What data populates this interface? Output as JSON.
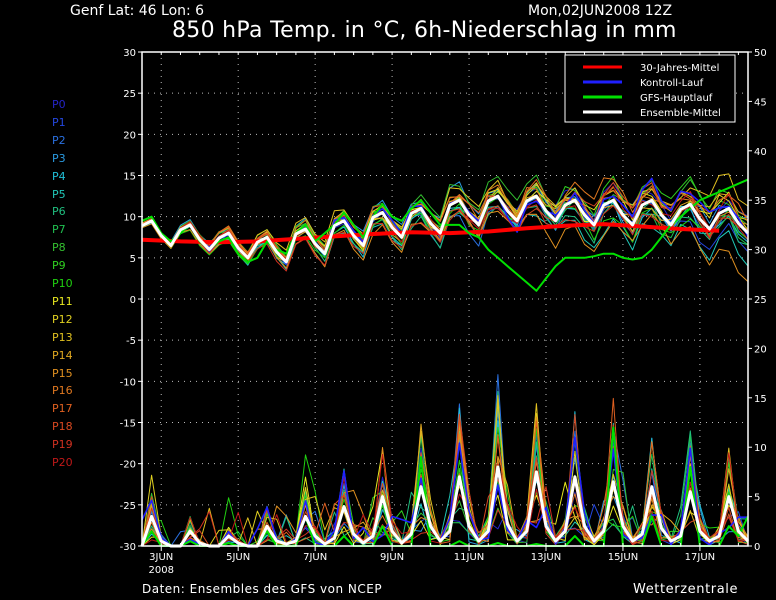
{
  "header": {
    "location": "Genf  Lat: 46 Lon: 6",
    "datetime": "Mon,02JUN2008 12Z",
    "title": "850 hPa Temp. in °C, 6h-Niederschlag in mm"
  },
  "footer": {
    "source": "Daten: Ensembles des GFS von NCEP",
    "brand": "Wetterzentrale"
  },
  "members": [
    {
      "label": "P0",
      "color": "#2424c8"
    },
    {
      "label": "P1",
      "color": "#2448e0"
    },
    {
      "label": "P2",
      "color": "#2a70e0"
    },
    {
      "label": "P3",
      "color": "#2a9ae0"
    },
    {
      "label": "P4",
      "color": "#20c0d8"
    },
    {
      "label": "P5",
      "color": "#20c8b8"
    },
    {
      "label": "P6",
      "color": "#20c080"
    },
    {
      "label": "P7",
      "color": "#20c050"
    },
    {
      "label": "P8",
      "color": "#34c030"
    },
    {
      "label": "P9",
      "color": "#30d020"
    },
    {
      "label": "P10",
      "color": "#20d010"
    },
    {
      "label": "P11",
      "color": "#e8e820"
    },
    {
      "label": "P12",
      "color": "#e0d020"
    },
    {
      "label": "P13",
      "color": "#e0c020"
    },
    {
      "label": "P14",
      "color": "#e0a820"
    },
    {
      "label": "P15",
      "color": "#e09020"
    },
    {
      "label": "P16",
      "color": "#e07820"
    },
    {
      "label": "P17",
      "color": "#e06020"
    },
    {
      "label": "P18",
      "color": "#d84820"
    },
    {
      "label": "P19",
      "color": "#d03020"
    },
    {
      "label": "P20",
      "color": "#c01818"
    }
  ],
  "chart_data": {
    "type": "line",
    "title": "850 hPa Temp. in °C, 6h-Niederschlag in mm",
    "start": "02JUN2008 12Z",
    "step_hours": 6,
    "n_steps": 64,
    "y_left": {
      "label": "850 hPa Temp. (°C)",
      "range": [
        -30,
        30
      ],
      "ticks": [
        30,
        25,
        20,
        15,
        10,
        5,
        0,
        -5,
        -10,
        -15,
        -20,
        -25,
        -30
      ]
    },
    "y_right": {
      "label": "6h-Niederschlag (mm)",
      "range": [
        0,
        50
      ],
      "ticks": [
        50,
        45,
        40,
        35,
        30,
        25,
        20,
        15,
        10,
        5,
        0
      ]
    },
    "x_ticks": [
      {
        "day": 0.5,
        "label": "3JUN",
        "sub": "2008"
      },
      {
        "day": 2.5,
        "label": "5JUN"
      },
      {
        "day": 4.5,
        "label": "7JUN"
      },
      {
        "day": 6.5,
        "label": "9JUN"
      },
      {
        "day": 8.5,
        "label": "11JUN"
      },
      {
        "day": 10.5,
        "label": "13JUN"
      },
      {
        "day": 12.5,
        "label": "15JUN"
      },
      {
        "day": 14.5,
        "label": "17JUN"
      }
    ],
    "grid": true,
    "legend": {
      "position": "top-right",
      "entries": [
        {
          "label": "30-Jahres-Mittel",
          "color": "#ff0000"
        },
        {
          "label": "Kontroll-Lauf",
          "color": "#2020ff"
        },
        {
          "label": "GFS-Hauptlauf",
          "color": "#00e000"
        },
        {
          "label": "Ensemble-Mittel",
          "color": "#ffffff"
        }
      ]
    },
    "climatology_daily_temp": [
      7.2,
      7.0,
      6.9,
      7.0,
      7.3,
      7.6,
      7.9,
      8.1,
      8.0,
      8.2,
      8.6,
      8.9,
      9.1,
      8.8,
      8.5,
      8.3
    ],
    "ensemble_mean_temp": [
      8.9,
      9.5,
      7.7,
      6.5,
      8.4,
      9,
      7.2,
      6,
      7.4,
      8,
      6.2,
      5,
      6.9,
      7.5,
      5.7,
      4.5,
      7.9,
      8.5,
      6.7,
      5.5,
      8.9,
      9.5,
      7.7,
      6.5,
      9.9,
      10.5,
      8.7,
      7.5,
      10.4,
      11,
      9.2,
      8,
      11.4,
      12,
      10.2,
      9,
      11.9,
      12.5,
      10.7,
      9.5,
      11.9,
      12.5,
      10.7,
      9.5,
      11.4,
      12,
      10.2,
      9,
      11.4,
      12,
      10.2,
      9,
      11.4,
      12,
      10.2,
      9,
      10.9,
      11.5,
      9.7,
      8.5,
      10.4,
      11,
      9.2,
      8
    ],
    "gfs_main_temp": [
      9.5,
      10,
      8,
      7,
      8,
      9,
      7,
      6,
      7,
      7.5,
      5.5,
      4.5,
      5,
      7,
      6,
      5.5,
      8,
      9,
      7,
      8,
      9,
      10.5,
      9,
      7.5,
      10,
      11.5,
      10,
      9.5,
      11,
      12,
      10.5,
      9,
      9,
      9,
      8,
      7.5,
      6,
      5,
      4,
      3,
      2,
      1,
      2.5,
      4,
      5,
      5,
      5,
      5.2,
      5.5,
      5.5,
      5,
      4.8,
      5,
      6,
      7.5,
      9,
      10,
      11,
      12,
      12.5,
      13,
      13.5,
      14,
      14.5
    ],
    "ensemble_mean_precip": [
      0,
      3,
      0.5,
      0,
      0,
      1.5,
      0.3,
      0,
      0,
      1,
      0.3,
      0,
      0,
      2,
      0.5,
      0.2,
      0.5,
      3,
      1,
      0.2,
      0.8,
      4,
      1.2,
      0.3,
      1,
      5,
      1.5,
      0.3,
      1.2,
      6,
      2,
      0.5,
      1.5,
      7,
      2,
      0.5,
      1.5,
      8,
      2.2,
      0.5,
      1.5,
      7.5,
      2,
      0.5,
      1.5,
      7,
      2,
      0.5,
      1.5,
      6.5,
      2,
      0.5,
      1.2,
      6,
      1.8,
      0.5,
      1,
      5.5,
      1.5,
      0.5,
      1,
      5,
      1.5,
      0.5
    ],
    "gfs_main_precip": [
      0,
      1.5,
      0,
      0,
      0,
      0.5,
      0,
      0,
      0,
      0.3,
      0,
      0,
      0,
      1.5,
      0,
      0,
      0,
      3,
      0,
      0,
      0,
      1,
      0,
      0,
      0,
      2,
      0,
      0,
      0,
      9,
      0,
      0,
      0,
      0.5,
      0,
      0,
      0,
      0.3,
      0,
      0,
      0,
      0.2,
      0,
      0,
      0,
      1,
      0,
      0,
      0,
      12,
      0,
      0,
      0,
      3,
      0,
      0,
      0,
      8,
      0,
      0,
      0,
      2,
      1,
      3
    ],
    "member_temp_spread": [
      0.4,
      4.5
    ],
    "member_precip_scale": [
      0.2,
      2.0
    ]
  }
}
